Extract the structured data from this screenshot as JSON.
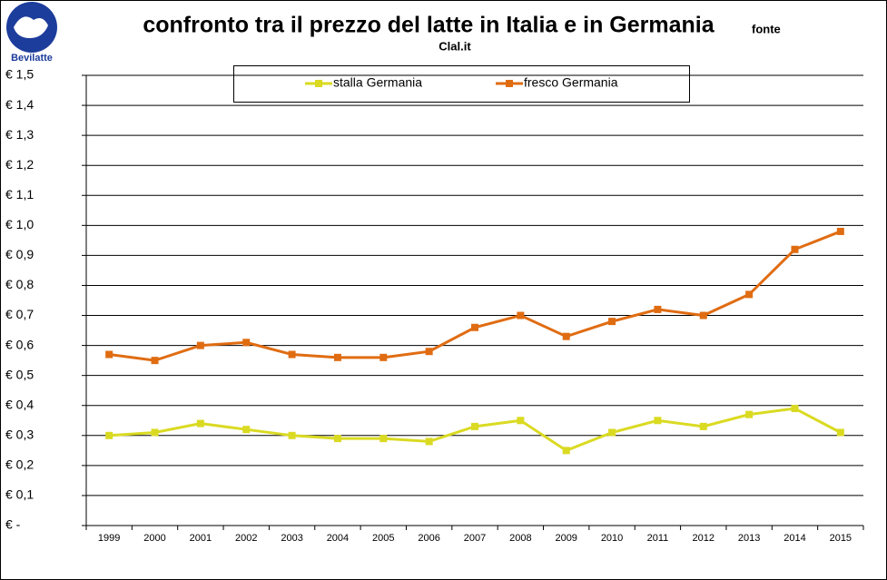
{
  "logo": "Bevilatte",
  "chart_data": {
    "type": "line",
    "title": "confronto tra il prezzo del latte in Italia e in Germania",
    "subtitle": "fonte",
    "source": "Clal.it",
    "categories": [
      "1999",
      "2000",
      "2001",
      "2002",
      "2003",
      "2004",
      "2005",
      "2006",
      "2007",
      "2008",
      "2009",
      "2010",
      "2011",
      "2012",
      "2013",
      "2014",
      "2015"
    ],
    "series": [
      {
        "name": "stalla Germania",
        "color": "#dada22",
        "values": [
          0.3,
          0.31,
          0.34,
          0.32,
          0.3,
          0.29,
          0.29,
          0.28,
          0.33,
          0.35,
          0.25,
          0.31,
          0.35,
          0.33,
          0.37,
          0.39,
          0.31
        ]
      },
      {
        "name": "fresco Germania",
        "color": "#e06c12",
        "values": [
          0.57,
          0.55,
          0.6,
          0.61,
          0.57,
          0.56,
          0.56,
          0.58,
          0.66,
          0.7,
          0.63,
          0.68,
          0.72,
          0.7,
          0.77,
          0.92,
          0.98
        ]
      }
    ],
    "ylim": [
      0,
      1.5
    ],
    "yticks": [
      {
        "value": 0,
        "label": "€ -"
      },
      {
        "value": 0.1,
        "label": "€ 0,1"
      },
      {
        "value": 0.2,
        "label": "€ 0,2"
      },
      {
        "value": 0.3,
        "label": "€ 0,3"
      },
      {
        "value": 0.4,
        "label": "€ 0,4"
      },
      {
        "value": 0.5,
        "label": "€ 0,5"
      },
      {
        "value": 0.6,
        "label": "€ 0,6"
      },
      {
        "value": 0.7,
        "label": "€ 0,7"
      },
      {
        "value": 0.8,
        "label": "€ 0,8"
      },
      {
        "value": 0.9,
        "label": "€ 0,9"
      },
      {
        "value": 1.0,
        "label": "€ 1,0"
      },
      {
        "value": 1.1,
        "label": "€ 1,1"
      },
      {
        "value": 1.2,
        "label": "€ 1,2"
      },
      {
        "value": 1.3,
        "label": "€ 1,3"
      },
      {
        "value": 1.4,
        "label": "€ 1,4"
      },
      {
        "value": 1.5,
        "label": "€ 1,5"
      }
    ],
    "grid": true
  }
}
